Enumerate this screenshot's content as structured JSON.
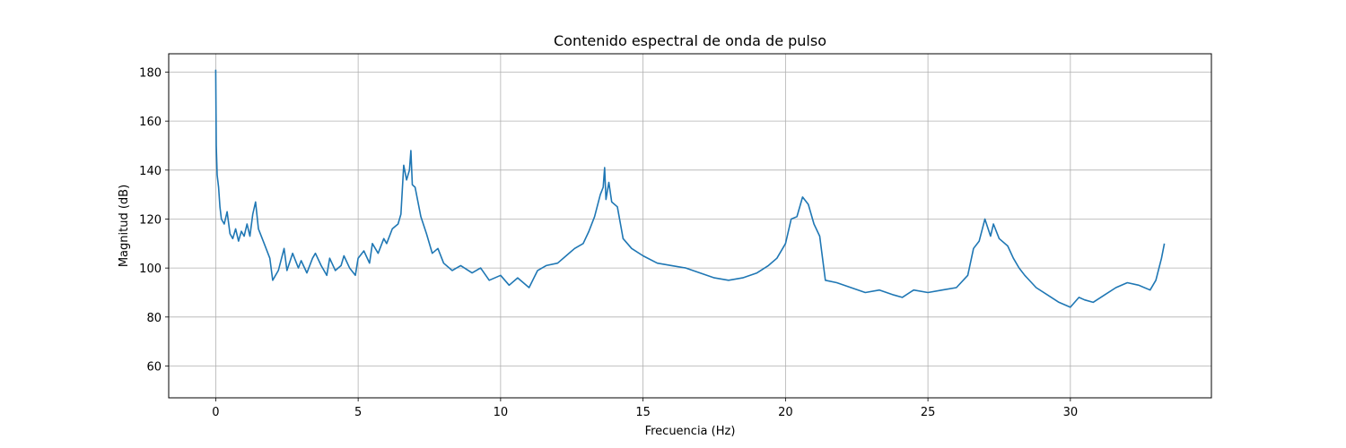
{
  "chart_data": {
    "type": "line",
    "title": "Contenido espectral de onda de pulso",
    "xlabel": "Frecuencia (Hz)",
    "ylabel": "Magnitud (dB)",
    "xlim": [
      -1.65,
      34.95
    ],
    "ylim": [
      47,
      187.5
    ],
    "xticks": [
      0,
      5,
      10,
      15,
      20,
      25,
      30
    ],
    "yticks": [
      60,
      80,
      100,
      120,
      140,
      160,
      180
    ],
    "grid": true,
    "line_color": "#1f77b4",
    "series": [
      {
        "name": "",
        "x": [
          0.0,
          0.02,
          0.05,
          0.1,
          0.15,
          0.2,
          0.3,
          0.4,
          0.5,
          0.6,
          0.7,
          0.8,
          0.9,
          1.0,
          1.1,
          1.2,
          1.3,
          1.4,
          1.5,
          1.7,
          1.9,
          2.0,
          2.2,
          2.4,
          2.5,
          2.7,
          2.9,
          3.0,
          3.2,
          3.4,
          3.5,
          3.7,
          3.9,
          4.0,
          4.2,
          4.4,
          4.5,
          4.7,
          4.9,
          5.0,
          5.2,
          5.4,
          5.5,
          5.7,
          5.9,
          6.0,
          6.2,
          6.4,
          6.5,
          6.6,
          6.7,
          6.8,
          6.85,
          6.9,
          7.0,
          7.2,
          7.4,
          7.6,
          7.8,
          8.0,
          8.3,
          8.6,
          9.0,
          9.3,
          9.6,
          10.0,
          10.3,
          10.6,
          11.0,
          11.3,
          11.6,
          12.0,
          12.3,
          12.6,
          12.9,
          13.1,
          13.3,
          13.5,
          13.6,
          13.65,
          13.7,
          13.8,
          13.9,
          14.1,
          14.3,
          14.6,
          15.0,
          15.5,
          16.0,
          16.5,
          17.0,
          17.5,
          18.0,
          18.5,
          19.0,
          19.4,
          19.7,
          20.0,
          20.2,
          20.4,
          20.6,
          20.8,
          21.0,
          21.2,
          21.4,
          21.8,
          22.3,
          22.8,
          23.3,
          23.8,
          24.1,
          24.5,
          25.0,
          25.5,
          26.0,
          26.4,
          26.6,
          26.8,
          27.0,
          27.2,
          27.3,
          27.5,
          27.8,
          28.0,
          28.2,
          28.4,
          28.8,
          29.2,
          29.6,
          30.0,
          30.3,
          30.5,
          30.8,
          31.2,
          31.6,
          32.0,
          32.4,
          32.8,
          33.0,
          33.2,
          33.3
        ],
        "y": [
          181,
          150,
          138,
          133,
          125,
          120,
          118,
          123,
          114,
          112,
          116,
          111,
          115,
          113,
          118,
          113,
          122,
          127,
          116,
          110,
          104,
          95,
          99,
          108,
          99,
          106,
          100,
          103,
          98,
          104,
          106,
          101,
          97,
          104,
          99,
          101,
          105,
          100,
          97,
          104,
          107,
          102,
          110,
          106,
          112,
          110,
          116,
          118,
          122,
          142,
          136,
          140,
          148,
          134,
          133,
          121,
          114,
          106,
          108,
          102,
          99,
          101,
          98,
          100,
          95,
          97,
          93,
          96,
          92,
          99,
          101,
          102,
          105,
          108,
          110,
          115,
          121,
          130,
          133,
          141,
          128,
          135,
          127,
          125,
          112,
          108,
          105,
          102,
          101,
          100,
          98,
          96,
          95,
          96,
          98,
          101,
          104,
          110,
          120,
          121,
          129,
          126,
          118,
          113,
          95,
          94,
          92,
          90,
          91,
          89,
          88,
          91,
          90,
          91,
          92,
          97,
          108,
          111,
          120,
          113,
          118,
          112,
          109,
          104,
          100,
          97,
          92,
          89,
          86,
          84,
          88,
          87,
          86,
          89,
          92,
          94,
          93,
          91,
          95,
          104,
          110
        ]
      }
    ]
  }
}
